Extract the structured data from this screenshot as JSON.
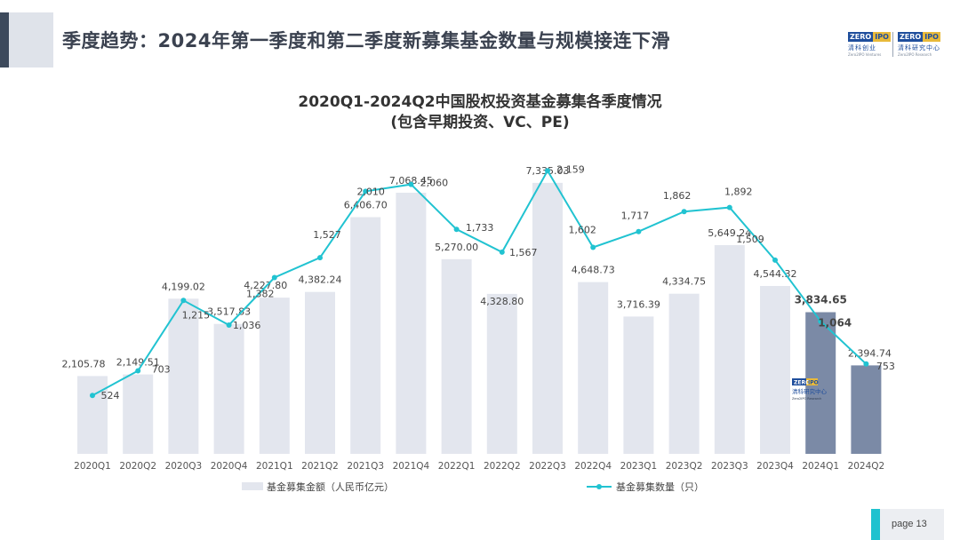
{
  "header": {
    "title": "季度趋势：2024年第一季度和第二季度新募集基金数量与规模接连下滑"
  },
  "logos": [
    {
      "mark_left": "ZERO",
      "mark_right": "IPO",
      "cn": "清科创业",
      "en": "Zero2IPO Ventures"
    },
    {
      "mark_left": "ZERO",
      "mark_right": "IPO",
      "cn": "清科研究中心",
      "en": "Zero2IPO Research"
    }
  ],
  "watermark": {
    "mark_left": "ZERO",
    "mark_right": "IPO",
    "cn": "清科研究中心",
    "en": "Zero2IPO Research"
  },
  "chart_data": {
    "type": "bar",
    "title": "2020Q1-2024Q2中国股权投资基金募集各季度情况",
    "subtitle": "(包含早期投资、VC、PE)",
    "categories": [
      "2020Q1",
      "2020Q2",
      "2020Q3",
      "2020Q4",
      "2021Q1",
      "2021Q2",
      "2021Q3",
      "2021Q4",
      "2022Q1",
      "2022Q2",
      "2022Q3",
      "2022Q4",
      "2023Q1",
      "2023Q2",
      "2023Q3",
      "2023Q4",
      "2024Q1",
      "2024Q2"
    ],
    "bar_series": {
      "name": "基金募集金额（人民币亿元）",
      "values": [
        2105.78,
        2149.51,
        4199.02,
        3517.83,
        4227.8,
        4382.24,
        6406.7,
        7068.45,
        5270.0,
        4328.8,
        7335.03,
        4648.73,
        3716.39,
        4334.75,
        5649.24,
        4544.32,
        3834.65,
        2394.74
      ],
      "labels": [
        "2,105.78",
        "2,149.51",
        "4,199.02",
        "3,517.83",
        "4,227.80",
        "4,382.24",
        "6,406.70",
        "7,068.45",
        "5,270.00",
        "4,328.80",
        "7,335.03",
        "4,648.73",
        "3,716.39",
        "4,334.75",
        "5,649.24",
        "4,544.32",
        "3,834.65",
        "2,394.74"
      ],
      "color": "#e3e6ee",
      "highlight_color": "#7b8aa6",
      "highlight_indices": [
        16,
        17
      ]
    },
    "line_series": {
      "name": "基金募集数量（只）",
      "values": [
        524,
        703,
        1215,
        1036,
        1382,
        1527,
        2010,
        2060,
        1733,
        1567,
        2159,
        1602,
        1717,
        1862,
        1892,
        1509,
        1064,
        753
      ],
      "labels": [
        "524",
        "703",
        "1,215",
        "1,036",
        "1,382",
        "1,527",
        "2,010",
        "2,060",
        "1,733",
        "1,567",
        "2,159",
        "1,602",
        "1,717",
        "1,862",
        "1,892",
        "1,509",
        "1,064",
        "753"
      ],
      "color": "#21c3d1"
    },
    "bold_indices": [
      16
    ],
    "legend_position": "bottom",
    "grid": false
  },
  "footer": {
    "page_label": "page  13"
  }
}
